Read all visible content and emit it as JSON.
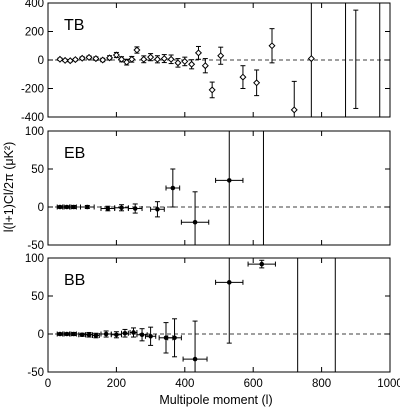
{
  "chart_data": [
    {
      "type": "scatter",
      "panel_label": "TB",
      "ylim": [
        -400,
        400
      ],
      "yticks": [
        "400",
        "200",
        "0",
        "-200",
        "-400"
      ],
      "ytick_values": [
        400,
        200,
        0,
        -200,
        -400
      ],
      "series": [
        {
          "points": [
            {
              "x": 35,
              "y": 5,
              "err": 8,
              "xerr": 0
            },
            {
              "x": 50,
              "y": -3,
              "err": 8,
              "xerr": 0
            },
            {
              "x": 65,
              "y": -5,
              "err": 8,
              "xerr": 0
            },
            {
              "x": 80,
              "y": 3,
              "err": 8,
              "xerr": 0
            },
            {
              "x": 100,
              "y": 12,
              "err": 10,
              "xerr": 0
            },
            {
              "x": 120,
              "y": 18,
              "err": 10,
              "xerr": 0
            },
            {
              "x": 140,
              "y": 10,
              "err": 12,
              "xerr": 0
            },
            {
              "x": 160,
              "y": 0,
              "err": 12,
              "xerr": 0
            },
            {
              "x": 180,
              "y": 15,
              "err": 15,
              "xerr": 0
            },
            {
              "x": 200,
              "y": 35,
              "err": 18,
              "xerr": 0
            },
            {
              "x": 215,
              "y": 5,
              "err": 18,
              "xerr": 0
            },
            {
              "x": 230,
              "y": -15,
              "err": 20,
              "xerr": 0
            },
            {
              "x": 245,
              "y": 5,
              "err": 20,
              "xerr": 0
            },
            {
              "x": 260,
              "y": 70,
              "err": 22,
              "xerr": 0
            },
            {
              "x": 280,
              "y": 5,
              "err": 24,
              "xerr": 0
            },
            {
              "x": 300,
              "y": 20,
              "err": 25,
              "xerr": 0
            },
            {
              "x": 320,
              "y": 5,
              "err": 25,
              "xerr": 0
            },
            {
              "x": 340,
              "y": 10,
              "err": 28,
              "xerr": 0
            },
            {
              "x": 360,
              "y": 5,
              "err": 30,
              "xerr": 0
            },
            {
              "x": 380,
              "y": -20,
              "err": 30,
              "xerr": 0
            },
            {
              "x": 400,
              "y": -10,
              "err": 30,
              "xerr": 0
            },
            {
              "x": 420,
              "y": -30,
              "err": 32,
              "xerr": 0
            },
            {
              "x": 440,
              "y": 50,
              "err": 45,
              "xerr": 0
            },
            {
              "x": 460,
              "y": -40,
              "err": 50,
              "xerr": 0
            },
            {
              "x": 480,
              "y": -210,
              "err": 55,
              "xerr": 0
            },
            {
              "x": 505,
              "y": 30,
              "err": 60,
              "xerr": 0
            },
            {
              "x": 570,
              "y": -120,
              "err": 80,
              "xerr": 0
            },
            {
              "x": 610,
              "y": -160,
              "err": 90,
              "xerr": 0
            },
            {
              "x": 655,
              "y": 100,
              "err": 120,
              "xerr": 0
            },
            {
              "x": 720,
              "y": -350,
              "err": 200,
              "xerr": 0
            },
            {
              "x": 770,
              "y": 10,
              "err": 600,
              "xerr": 0
            },
            {
              "x": 870,
              "y": 0,
              "err": 900,
              "xerr": 0,
              "marker": false
            },
            {
              "x": 900,
              "y": 0,
              "err": 350,
              "xerr": 0,
              "marker": false,
              "bottom": -340
            },
            {
              "x": 970,
              "y": 0,
              "err": 900,
              "xerr": 0,
              "marker": false
            }
          ]
        }
      ]
    },
    {
      "type": "scatter",
      "panel_label": "EB",
      "ylim": [
        -50,
        100
      ],
      "yticks": [
        "100",
        "50",
        "0",
        "-50"
      ],
      "ytick_values": [
        100,
        50,
        0,
        -50
      ],
      "series": [
        {
          "points": [
            {
              "x": 35,
              "y": 0,
              "err": 1.5,
              "xerr": 8
            },
            {
              "x": 55,
              "y": 0,
              "err": 1.5,
              "xerr": 8
            },
            {
              "x": 75,
              "y": 0,
              "err": 2,
              "xerr": 8
            },
            {
              "x": 115,
              "y": 0,
              "err": 2,
              "xerr": 20
            },
            {
              "x": 175,
              "y": -2,
              "err": 3,
              "xerr": 20
            },
            {
              "x": 215,
              "y": -1,
              "err": 4,
              "xerr": 20
            },
            {
              "x": 255,
              "y": -2,
              "err": 6,
              "xerr": 20
            },
            {
              "x": 320,
              "y": -3,
              "err": 10,
              "xerr": 20
            },
            {
              "x": 365,
              "y": 25,
              "err": 25,
              "xerr": 20
            },
            {
              "x": 430,
              "y": -20,
              "err": 40,
              "xerr": 40
            },
            {
              "x": 530,
              "y": 35,
              "err": 300,
              "xerr": 40
            },
            {
              "x": 630,
              "y": 0,
              "err": 300,
              "xerr": 0,
              "marker": false
            }
          ]
        }
      ]
    },
    {
      "type": "scatter",
      "panel_label": "BB",
      "ylim": [
        -50,
        100
      ],
      "yticks": [
        "100",
        "50",
        "0",
        "-50"
      ],
      "ytick_values": [
        100,
        50,
        0,
        -50
      ],
      "series": [
        {
          "points": [
            {
              "x": 35,
              "y": 0,
              "err": 1.5,
              "xerr": 8
            },
            {
              "x": 55,
              "y": 0,
              "err": 1.5,
              "xerr": 8
            },
            {
              "x": 75,
              "y": 0,
              "err": 2,
              "xerr": 8
            },
            {
              "x": 100,
              "y": -1,
              "err": 2,
              "xerr": 10
            },
            {
              "x": 120,
              "y": -1,
              "err": 3,
              "xerr": 10
            },
            {
              "x": 140,
              "y": -2,
              "err": 3,
              "xerr": 10
            },
            {
              "x": 170,
              "y": 0,
              "err": 4,
              "xerr": 15
            },
            {
              "x": 200,
              "y": -1,
              "err": 4,
              "xerr": 15
            },
            {
              "x": 225,
              "y": 1,
              "err": 5,
              "xerr": 10
            },
            {
              "x": 250,
              "y": 2,
              "err": 6,
              "xerr": 10
            },
            {
              "x": 275,
              "y": -1,
              "err": 8,
              "xerr": 15
            },
            {
              "x": 300,
              "y": -3,
              "err": 12,
              "xerr": 15
            },
            {
              "x": 345,
              "y": -5,
              "err": 20,
              "xerr": 20
            },
            {
              "x": 370,
              "y": -5,
              "err": 25,
              "xerr": 20
            },
            {
              "x": 430,
              "y": -33,
              "err": 50,
              "xerr": 35
            },
            {
              "x": 530,
              "y": 68,
              "err": 80,
              "xerr": 40
            },
            {
              "x": 625,
              "y": 92,
              "err": 5,
              "xerr": 40
            },
            {
              "x": 730,
              "y": 0,
              "err": 300,
              "xerr": 0,
              "marker": false
            },
            {
              "x": 840,
              "y": 0,
              "err": 300,
              "xerr": 0,
              "marker": false
            }
          ]
        }
      ]
    }
  ],
  "xlim": [
    0,
    1000
  ],
  "xticks": [
    "0",
    "200",
    "400",
    "600",
    "800",
    "1000"
  ],
  "xtick_values": [
    0,
    200,
    400,
    600,
    800,
    1000
  ],
  "xlabel": "Multipole moment (l)",
  "ylabel": "l(l+1)Cl/2π (μK²)",
  "colors": {
    "ink": "#000000",
    "background": "#ffffff"
  }
}
